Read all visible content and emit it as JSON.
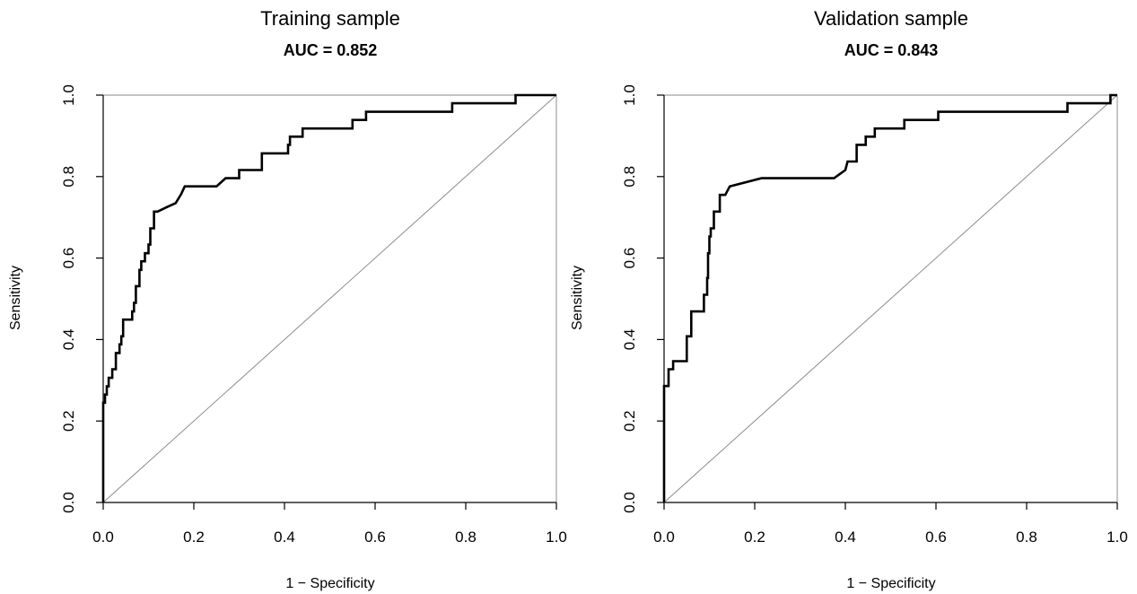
{
  "chart_data": [
    {
      "type": "line",
      "title": "Training sample",
      "subtitle": "AUC = 0.852",
      "xlabel": "1 − Specificity",
      "ylabel": "Sensitivity",
      "xlim": [
        0,
        1
      ],
      "ylim": [
        0,
        1
      ],
      "xticks": [
        "0.0",
        "0.2",
        "0.4",
        "0.6",
        "0.8",
        "1.0"
      ],
      "yticks": [
        "0.0",
        "0.2",
        "0.4",
        "0.6",
        "0.8",
        "1.0"
      ],
      "grid": false,
      "reference_line": [
        [
          0,
          0
        ],
        [
          1,
          1
        ]
      ],
      "series": [
        {
          "x": [
            0,
            0,
            0.004,
            0.004,
            0.008,
            0.008,
            0.012,
            0.012,
            0.02,
            0.02,
            0.028,
            0.028,
            0.036,
            0.036,
            0.04,
            0.04,
            0.044,
            0.044,
            0.064,
            0.064,
            0.068,
            0.068,
            0.072,
            0.072,
            0.08,
            0.08,
            0.084,
            0.084,
            0.092,
            0.092,
            0.1,
            0.1,
            0.104,
            0.104,
            0.112,
            0.112,
            0.12,
            0.14,
            0.16,
            0.172,
            0.18,
            0.25,
            0.27,
            0.3,
            0.3,
            0.35,
            0.35,
            0.408,
            0.408,
            0.412,
            0.412,
            0.44,
            0.44,
            0.55,
            0.55,
            0.58,
            0.58,
            0.77,
            0.77,
            0.91,
            0.91,
            1
          ],
          "y": [
            0,
            0.245,
            0.245,
            0.265,
            0.265,
            0.285,
            0.285,
            0.306,
            0.306,
            0.327,
            0.327,
            0.367,
            0.367,
            0.388,
            0.388,
            0.408,
            0.408,
            0.449,
            0.449,
            0.469,
            0.469,
            0.49,
            0.49,
            0.531,
            0.531,
            0.571,
            0.571,
            0.592,
            0.592,
            0.612,
            0.612,
            0.633,
            0.633,
            0.673,
            0.673,
            0.714,
            0.714,
            0.725,
            0.735,
            0.757,
            0.776,
            0.776,
            0.796,
            0.796,
            0.816,
            0.816,
            0.857,
            0.857,
            0.878,
            0.878,
            0.898,
            0.898,
            0.918,
            0.918,
            0.939,
            0.939,
            0.959,
            0.959,
            0.98,
            0.98,
            1,
            1
          ]
        }
      ]
    },
    {
      "type": "line",
      "title": "Validation sample",
      "subtitle": "AUC = 0.843",
      "xlabel": "1 − Specificity",
      "ylabel": "Sensitivity",
      "xlim": [
        0,
        1
      ],
      "ylim": [
        0,
        1
      ],
      "xticks": [
        "0.0",
        "0.2",
        "0.4",
        "0.6",
        "0.8",
        "1.0"
      ],
      "yticks": [
        "0.0",
        "0.2",
        "0.4",
        "0.6",
        "0.8",
        "1.0"
      ],
      "grid": false,
      "reference_line": [
        [
          0,
          0
        ],
        [
          1,
          1
        ]
      ],
      "series": [
        {
          "x": [
            0,
            0,
            0.01,
            0.01,
            0.02,
            0.02,
            0.05,
            0.05,
            0.06,
            0.06,
            0.088,
            0.088,
            0.095,
            0.095,
            0.097,
            0.097,
            0.1,
            0.1,
            0.103,
            0.103,
            0.11,
            0.11,
            0.123,
            0.123,
            0.135,
            0.145,
            0.215,
            0.375,
            0.4,
            0.405,
            0.425,
            0.425,
            0.445,
            0.445,
            0.465,
            0.465,
            0.48,
            0.48,
            0.53,
            0.53,
            0.605,
            0.605,
            0.89,
            0.89,
            0.985,
            0.985,
            1
          ],
          "y": [
            0,
            0.286,
            0.286,
            0.327,
            0.327,
            0.347,
            0.347,
            0.408,
            0.408,
            0.469,
            0.469,
            0.51,
            0.51,
            0.551,
            0.551,
            0.612,
            0.612,
            0.653,
            0.653,
            0.673,
            0.673,
            0.714,
            0.714,
            0.755,
            0.755,
            0.776,
            0.796,
            0.796,
            0.816,
            0.837,
            0.837,
            0.878,
            0.878,
            0.898,
            0.898,
            0.918,
            0.918,
            0.918,
            0.918,
            0.939,
            0.939,
            0.959,
            0.959,
            0.98,
            0.98,
            1,
            1
          ]
        }
      ]
    }
  ]
}
